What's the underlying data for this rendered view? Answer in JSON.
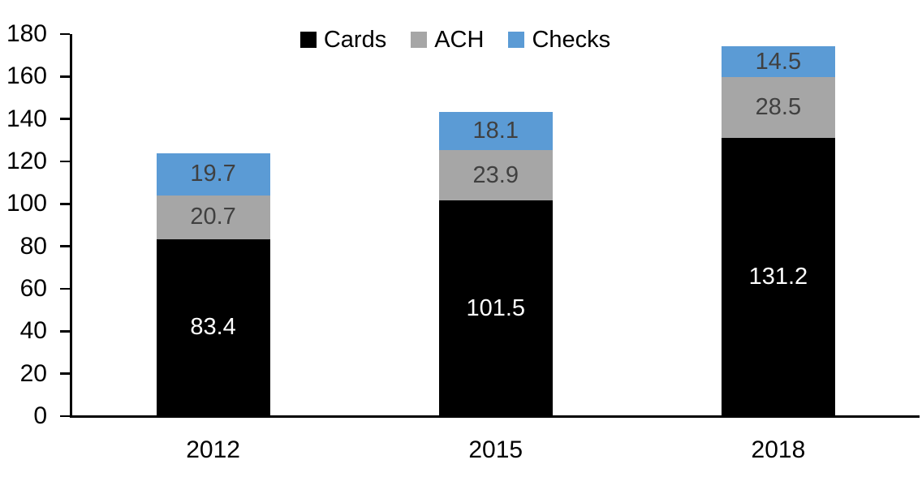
{
  "chart_data": {
    "type": "bar",
    "stacked": true,
    "title": "",
    "xlabel": "",
    "ylabel": "",
    "categories": [
      "2012",
      "2015",
      "2018"
    ],
    "series": [
      {
        "name": "Cards",
        "color": "#000000",
        "label_color": "#ffffff",
        "values": [
          83.4,
          101.5,
          131.2
        ]
      },
      {
        "name": "ACH",
        "color": "#a6a6a6",
        "label_color": "#404040",
        "values": [
          20.7,
          23.9,
          28.5
        ]
      },
      {
        "name": "Checks",
        "color": "#5b9bd5",
        "label_color": "#404040",
        "values": [
          19.7,
          18.1,
          14.5
        ]
      }
    ],
    "stack_order_bottom_to_top": [
      "Cards",
      "ACH",
      "Checks"
    ],
    "value_decimals": 1,
    "ylim": [
      0,
      180
    ],
    "yticks": [
      0,
      20,
      40,
      60,
      80,
      100,
      120,
      140,
      160,
      180
    ],
    "grid": false,
    "legend_position": "top-center",
    "axis_color": "#000000",
    "tick_label_color": "#000000",
    "background_color": "#ffffff"
  }
}
